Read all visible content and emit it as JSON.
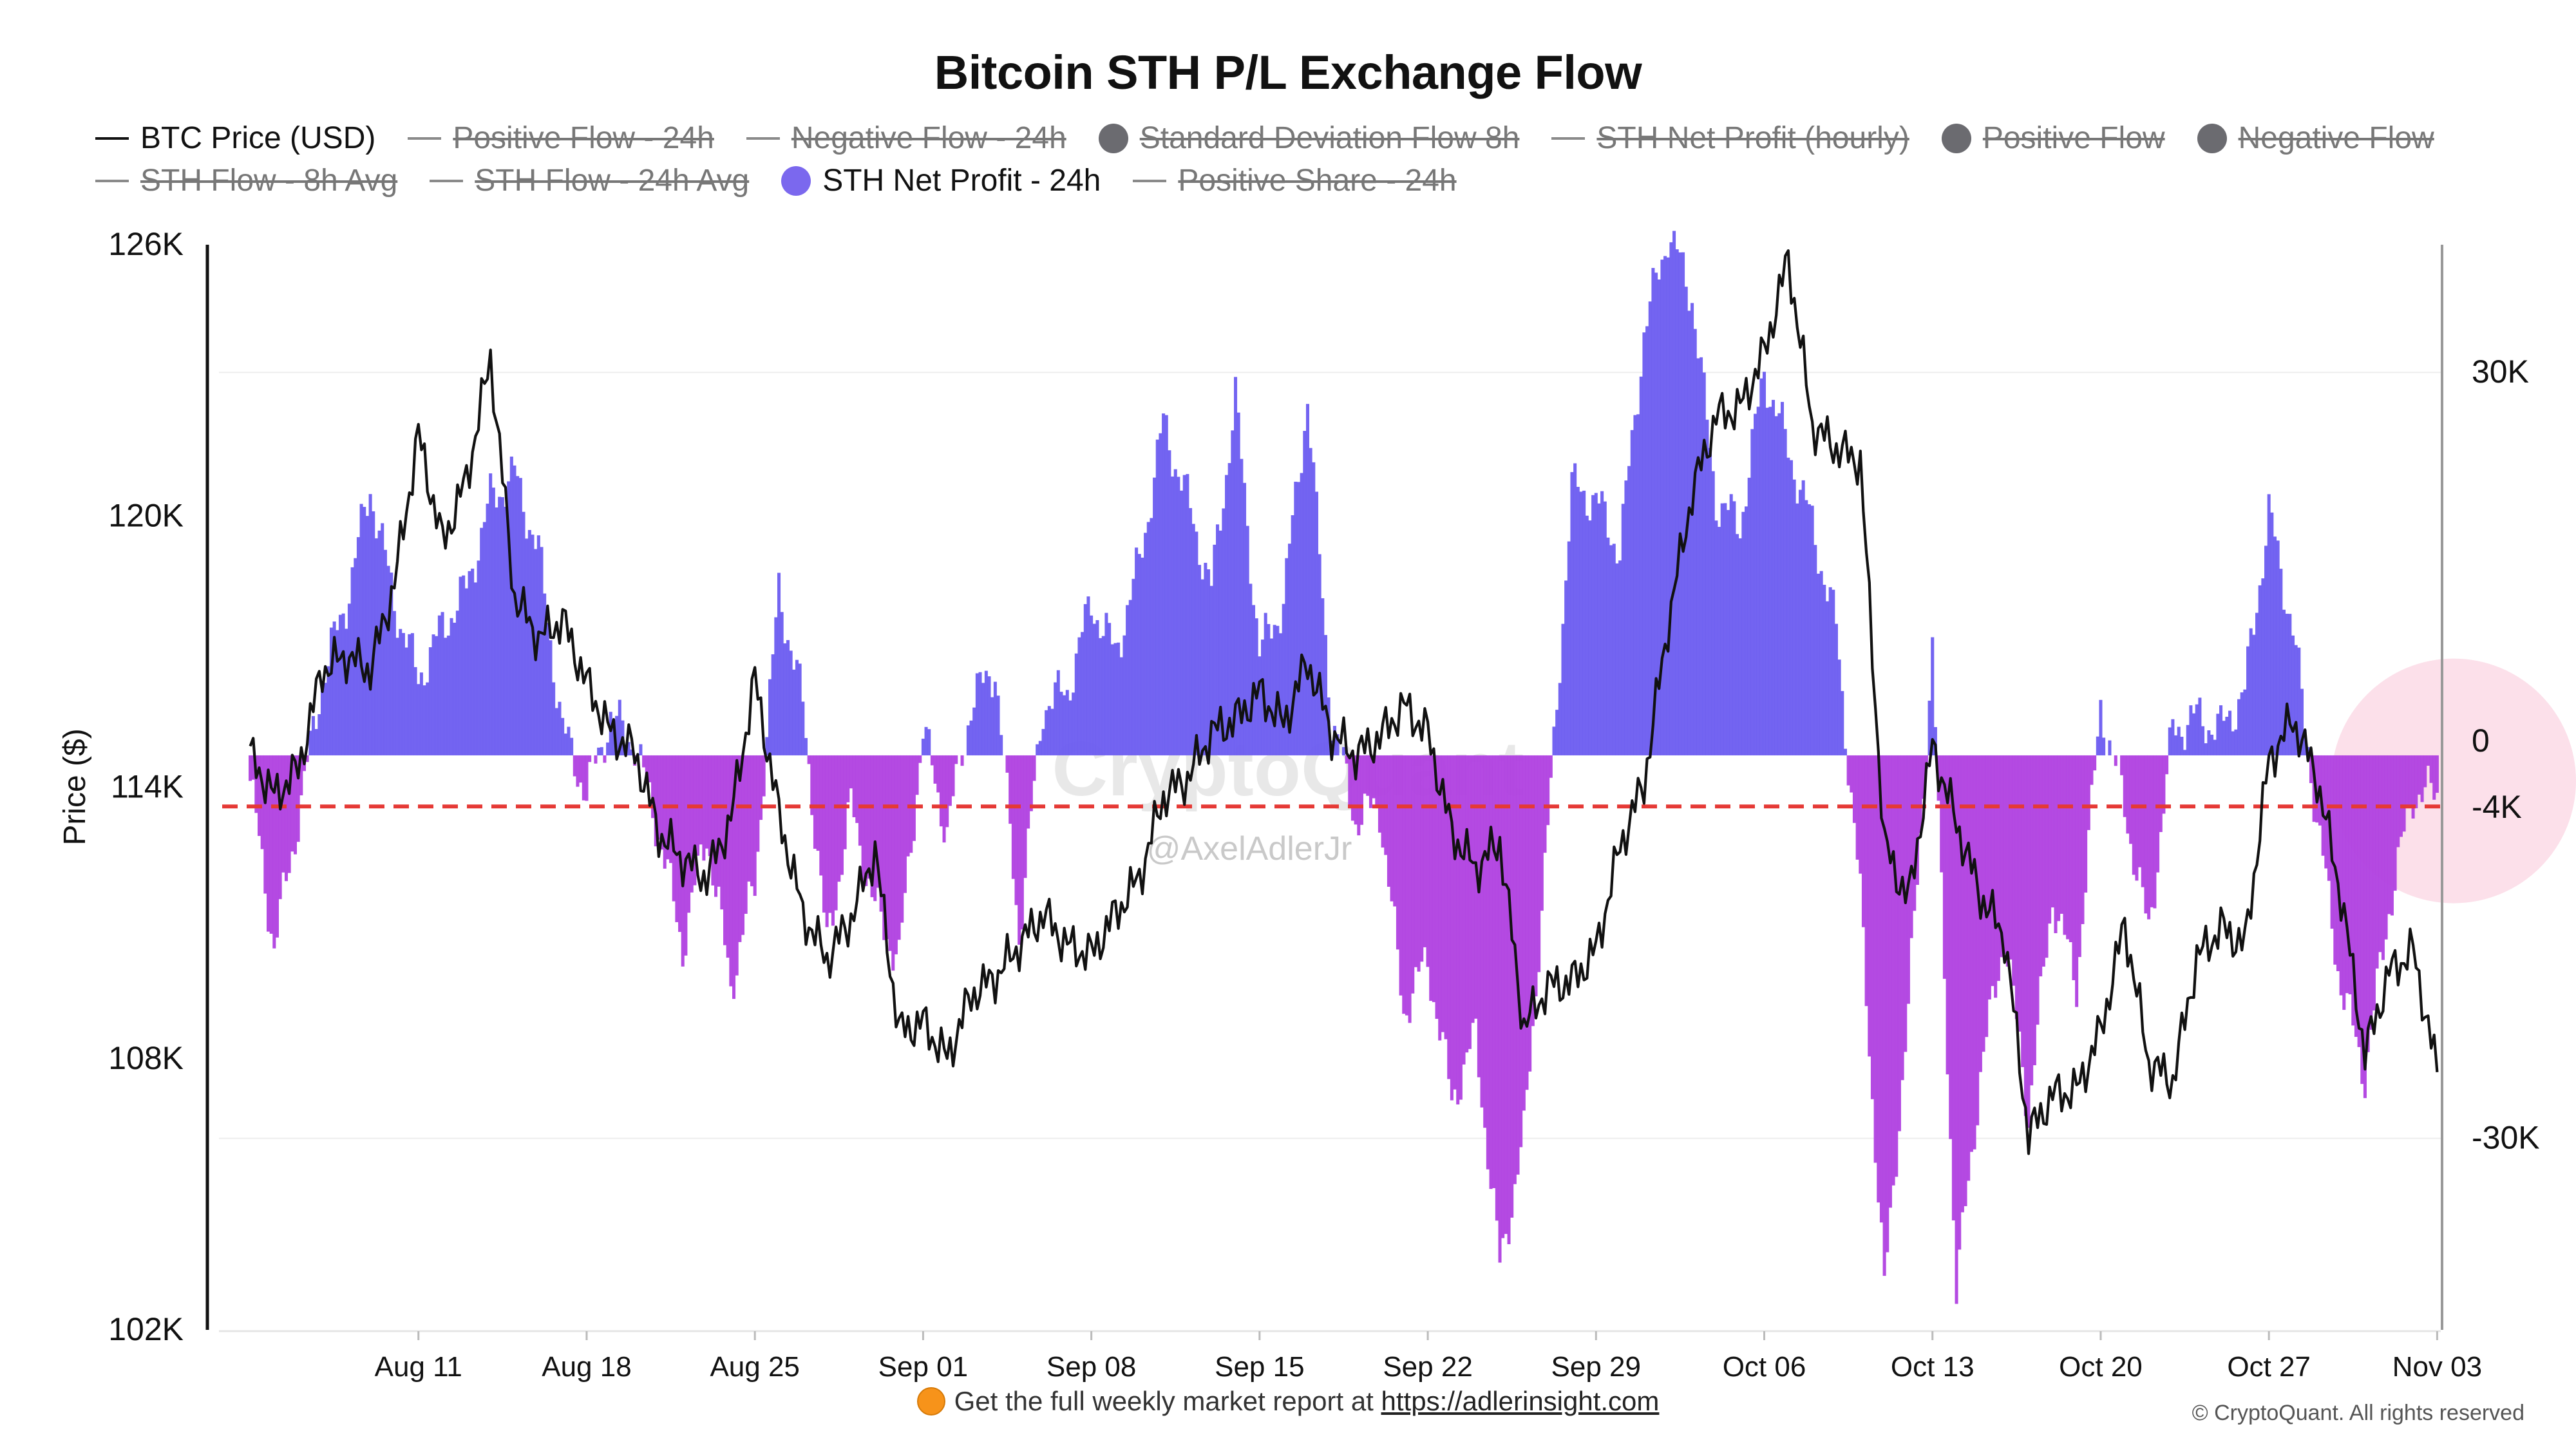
{
  "title": "Bitcoin STH P/L Exchange Flow",
  "legend": [
    {
      "label": "BTC Price (USD)",
      "symbol": "line",
      "color": "#111111",
      "active": true
    },
    {
      "label": "Positive Flow - 24h",
      "symbol": "line",
      "color": "#8a8a8a",
      "active": false
    },
    {
      "label": "Negative Flow - 24h",
      "symbol": "line",
      "color": "#8a8a8a",
      "active": false
    },
    {
      "label": "Standard Deviation Flow 8h",
      "symbol": "dot",
      "color": "#6b6b70",
      "active": false
    },
    {
      "label": "STH Net Profit (hourly)",
      "symbol": "line",
      "color": "#8a8a8a",
      "active": false
    },
    {
      "label": "Positive Flow",
      "symbol": "dot",
      "color": "#6b6b70",
      "active": false
    },
    {
      "label": "Negative Flow",
      "symbol": "dot",
      "color": "#6b6b70",
      "active": false
    },
    {
      "label": "STH Flow - 8h Avg",
      "symbol": "line",
      "color": "#8a8a8a",
      "active": false
    },
    {
      "label": "STH Flow - 24h Avg",
      "symbol": "line",
      "color": "#8a8a8a",
      "active": false
    },
    {
      "label": "STH Net Profit - 24h",
      "symbol": "dot",
      "color": "#7b68ee",
      "active": true
    },
    {
      "label": "Positive Share - 24h",
      "symbol": "line",
      "color": "#8a8a8a",
      "active": false
    }
  ],
  "watermark": "CryptoQuant",
  "author": "@AxelAdlerJr",
  "footer": {
    "text": "Get the full weekly market report at",
    "link": "https://adlerinsight.com",
    "copyright": "© CryptoQuant. All rights reserved"
  },
  "colors": {
    "positive": "#6b5cf0",
    "negative": "#b040e0",
    "price": "#111111",
    "threshold": "#e53935",
    "highlight": "#f9c6d8"
  },
  "chart_data": {
    "type": "bar",
    "x_start": "2025-08-04",
    "x_end": "2025-11-03",
    "x_ticks": [
      "Aug 11",
      "Aug 18",
      "Aug 25",
      "Sep 01",
      "Sep 08",
      "Sep 15",
      "Sep 22",
      "Sep 29",
      "Oct 06",
      "Oct 13",
      "Oct 20",
      "Oct 27",
      "Nov 03"
    ],
    "y_left": {
      "label": "Price ($)",
      "ticks": [
        "102K",
        "108K",
        "114K",
        "120K",
        "126K"
      ],
      "range": [
        102000,
        126000
      ]
    },
    "y_right": {
      "ticks": [
        "30K",
        "0",
        "-4K",
        "-30K"
      ],
      "range": [
        -45000,
        40000
      ]
    },
    "threshold": {
      "value": -4000,
      "label": "-4K",
      "style": "dashed"
    },
    "series": [
      {
        "name": "BTC Price (USD)",
        "type": "line",
        "axis": "left",
        "points": [
          [
            "2025-08-04",
            114700
          ],
          [
            "2025-08-05",
            113800
          ],
          [
            "2025-08-06",
            114400
          ],
          [
            "2025-08-07",
            116600
          ],
          [
            "2025-08-08",
            116900
          ],
          [
            "2025-08-09",
            116600
          ],
          [
            "2025-08-10",
            118500
          ],
          [
            "2025-08-11",
            121800
          ],
          [
            "2025-08-12",
            119400
          ],
          [
            "2025-08-13",
            120800
          ],
          [
            "2025-08-14",
            123500
          ],
          [
            "2025-08-15",
            118200
          ],
          [
            "2025-08-16",
            117300
          ],
          [
            "2025-08-17",
            117700
          ],
          [
            "2025-08-18",
            116300
          ],
          [
            "2025-08-19",
            115200
          ],
          [
            "2025-08-20",
            114800
          ],
          [
            "2025-08-21",
            113000
          ],
          [
            "2025-08-22",
            112400
          ],
          [
            "2025-08-23",
            112000
          ],
          [
            "2025-08-24",
            113300
          ],
          [
            "2025-08-25",
            116400
          ],
          [
            "2025-08-26",
            113400
          ],
          [
            "2025-08-27",
            111200
          ],
          [
            "2025-08-28",
            110200
          ],
          [
            "2025-08-29",
            111100
          ],
          [
            "2025-08-30",
            112600
          ],
          [
            "2025-08-31",
            108600
          ],
          [
            "2025-09-01",
            108800
          ],
          [
            "2025-09-02",
            108000
          ],
          [
            "2025-09-03",
            109400
          ],
          [
            "2025-09-04",
            109800
          ],
          [
            "2025-09-05",
            110500
          ],
          [
            "2025-09-06",
            111200
          ],
          [
            "2025-09-07",
            110500
          ],
          [
            "2025-09-08",
            110300
          ],
          [
            "2025-09-09",
            111200
          ],
          [
            "2025-09-10",
            112000
          ],
          [
            "2025-09-11",
            113800
          ],
          [
            "2025-09-12",
            114200
          ],
          [
            "2025-09-13",
            115200
          ],
          [
            "2025-09-14",
            115500
          ],
          [
            "2025-09-15",
            116100
          ],
          [
            "2025-09-16",
            115400
          ],
          [
            "2025-09-17",
            116800
          ],
          [
            "2025-09-18",
            115200
          ],
          [
            "2025-09-19",
            114700
          ],
          [
            "2025-09-20",
            115100
          ],
          [
            "2025-09-21",
            115800
          ],
          [
            "2025-09-22",
            115200
          ],
          [
            "2025-09-23",
            113000
          ],
          [
            "2025-09-24",
            112200
          ],
          [
            "2025-09-25",
            112800
          ],
          [
            "2025-09-26",
            108700
          ],
          [
            "2025-09-27",
            109600
          ],
          [
            "2025-09-28",
            109700
          ],
          [
            "2025-09-29",
            110400
          ],
          [
            "2025-09-30",
            112700
          ],
          [
            "2025-10-01",
            114100
          ],
          [
            "2025-10-02",
            117600
          ],
          [
            "2025-10-03",
            120500
          ],
          [
            "2025-10-04",
            122200
          ],
          [
            "2025-10-05",
            122400
          ],
          [
            "2025-10-06",
            123600
          ],
          [
            "2025-10-07",
            125700
          ],
          [
            "2025-10-08",
            122000
          ],
          [
            "2025-10-09",
            121500
          ],
          [
            "2025-10-10",
            121200
          ],
          [
            "2025-10-11",
            112700
          ],
          [
            "2025-10-12",
            111500
          ],
          [
            "2025-10-13",
            114900
          ],
          [
            "2025-10-14",
            113200
          ],
          [
            "2025-10-15",
            111600
          ],
          [
            "2025-10-16",
            110700
          ],
          [
            "2025-10-17",
            106300
          ],
          [
            "2025-10-18",
            107200
          ],
          [
            "2025-10-19",
            107300
          ],
          [
            "2025-10-20",
            108600
          ],
          [
            "2025-10-21",
            111000
          ],
          [
            "2025-10-22",
            107900
          ],
          [
            "2025-10-23",
            107500
          ],
          [
            "2025-10-24",
            110200
          ],
          [
            "2025-10-25",
            110900
          ],
          [
            "2025-10-26",
            110500
          ],
          [
            "2025-10-27",
            114600
          ],
          [
            "2025-10-28",
            115500
          ],
          [
            "2025-10-29",
            114200
          ],
          [
            "2025-10-30",
            111600
          ],
          [
            "2025-10-31",
            108100
          ],
          [
            "2025-11-01",
            109900
          ],
          [
            "2025-11-02",
            110400
          ],
          [
            "2025-11-03",
            107700
          ]
        ]
      },
      {
        "name": "STH Net Profit - 24h",
        "type": "bar",
        "axis": "right",
        "points": [
          [
            "2025-08-04",
            -2000
          ],
          [
            "2025-08-05",
            -15000
          ],
          [
            "2025-08-06",
            -5000
          ],
          [
            "2025-08-07",
            6000
          ],
          [
            "2025-08-08",
            12000
          ],
          [
            "2025-08-09",
            21000
          ],
          [
            "2025-08-10",
            12000
          ],
          [
            "2025-08-11",
            6000
          ],
          [
            "2025-08-12",
            10000
          ],
          [
            "2025-08-13",
            13000
          ],
          [
            "2025-08-14",
            20000
          ],
          [
            "2025-08-15",
            22000
          ],
          [
            "2025-08-16",
            16000
          ],
          [
            "2025-08-17",
            2000
          ],
          [
            "2025-08-18",
            -3000
          ],
          [
            "2025-08-19",
            3000
          ],
          [
            "2025-08-20",
            1000
          ],
          [
            "2025-08-21",
            -6000
          ],
          [
            "2025-08-22",
            -15000
          ],
          [
            "2025-08-23",
            -6000
          ],
          [
            "2025-08-24",
            -18000
          ],
          [
            "2025-08-25",
            -10000
          ],
          [
            "2025-08-26",
            13000
          ],
          [
            "2025-08-27",
            4000
          ],
          [
            "2025-08-28",
            -15000
          ],
          [
            "2025-08-29",
            -4000
          ],
          [
            "2025-08-30",
            -12000
          ],
          [
            "2025-08-31",
            -16000
          ],
          [
            "2025-09-01",
            2000
          ],
          [
            "2025-09-02",
            -6000
          ],
          [
            "2025-09-03",
            4000
          ],
          [
            "2025-09-04",
            7000
          ],
          [
            "2025-09-05",
            -14000
          ],
          [
            "2025-09-06",
            4000
          ],
          [
            "2025-09-07",
            5000
          ],
          [
            "2025-09-08",
            12000
          ],
          [
            "2025-09-09",
            8000
          ],
          [
            "2025-09-10",
            15000
          ],
          [
            "2025-09-11",
            26000
          ],
          [
            "2025-09-12",
            20000
          ],
          [
            "2025-09-13",
            13000
          ],
          [
            "2025-09-14",
            28000
          ],
          [
            "2025-09-15",
            8000
          ],
          [
            "2025-09-16",
            12000
          ],
          [
            "2025-09-17",
            28000
          ],
          [
            "2025-09-18",
            3000
          ],
          [
            "2025-09-19",
            -5000
          ],
          [
            "2025-09-20",
            -4000
          ],
          [
            "2025-09-21",
            -20000
          ],
          [
            "2025-09-22",
            -16000
          ],
          [
            "2025-09-23",
            -27000
          ],
          [
            "2025-09-24",
            -22000
          ],
          [
            "2025-09-25",
            -40000
          ],
          [
            "2025-09-26",
            -30000
          ],
          [
            "2025-09-27",
            -6000
          ],
          [
            "2025-09-28",
            21000
          ],
          [
            "2025-09-29",
            20000
          ],
          [
            "2025-09-30",
            16000
          ],
          [
            "2025-10-01",
            33000
          ],
          [
            "2025-10-02",
            41000
          ],
          [
            "2025-10-03",
            36000
          ],
          [
            "2025-10-04",
            20000
          ],
          [
            "2025-10-05",
            18000
          ],
          [
            "2025-10-06",
            30000
          ],
          [
            "2025-10-07",
            24000
          ],
          [
            "2025-10-08",
            18000
          ],
          [
            "2025-10-09",
            10000
          ],
          [
            "2025-10-10",
            -11000
          ],
          [
            "2025-10-11",
            -42000
          ],
          [
            "2025-10-12",
            -20000
          ],
          [
            "2025-10-13",
            8000
          ],
          [
            "2025-10-14",
            -42000
          ],
          [
            "2025-10-15",
            -25000
          ],
          [
            "2025-10-16",
            -14000
          ],
          [
            "2025-10-17",
            -28000
          ],
          [
            "2025-10-18",
            -11000
          ],
          [
            "2025-10-19",
            -18000
          ],
          [
            "2025-10-20",
            4000
          ],
          [
            "2025-10-21",
            -4000
          ],
          [
            "2025-10-22",
            -14000
          ],
          [
            "2025-10-23",
            2000
          ],
          [
            "2025-10-24",
            3000
          ],
          [
            "2025-10-25",
            2000
          ],
          [
            "2025-10-26",
            5000
          ],
          [
            "2025-10-27",
            19000
          ],
          [
            "2025-10-28",
            10000
          ],
          [
            "2025-10-29",
            -5000
          ],
          [
            "2025-10-30",
            -18000
          ],
          [
            "2025-10-31",
            -25000
          ],
          [
            "2025-11-01",
            -12000
          ],
          [
            "2025-11-02",
            -3000
          ],
          [
            "2025-11-03",
            -3000
          ]
        ]
      }
    ]
  }
}
